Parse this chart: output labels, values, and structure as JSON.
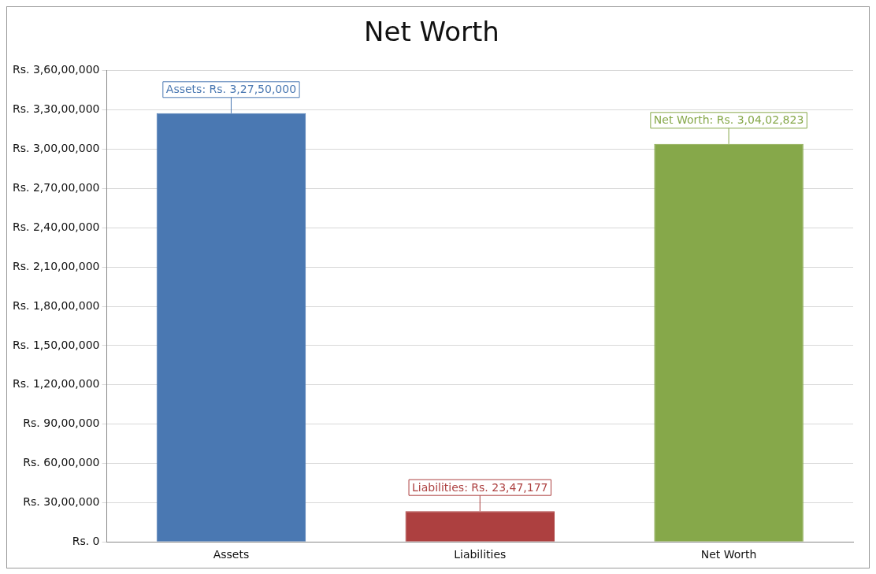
{
  "chart_data": {
    "type": "bar",
    "title": "Net Worth",
    "categories": [
      "Assets",
      "Liabilities",
      "Net Worth"
    ],
    "values": [
      32750000,
      2347177,
      30402823
    ],
    "colors": [
      "#4a78b2",
      "#ad4040",
      "#86a84a"
    ],
    "value_labels": [
      "Assets: Rs. 3,27,50,000",
      "Liabilities: Rs. 23,47,177",
      "Net Worth: Rs. 3,04,02,823"
    ],
    "ylim": [
      0,
      36000000
    ],
    "yticks": [
      {
        "value": 0,
        "label": "Rs. 0"
      },
      {
        "value": 3000000,
        "label": "Rs. 30,00,000"
      },
      {
        "value": 6000000,
        "label": "Rs. 60,00,000"
      },
      {
        "value": 9000000,
        "label": "Rs. 90,00,000"
      },
      {
        "value": 12000000,
        "label": "Rs. 1,20,00,000"
      },
      {
        "value": 15000000,
        "label": "Rs. 1,50,00,000"
      },
      {
        "value": 18000000,
        "label": "Rs. 1,80,00,000"
      },
      {
        "value": 21000000,
        "label": "Rs. 2,10,00,000"
      },
      {
        "value": 24000000,
        "label": "Rs. 2,40,00,000"
      },
      {
        "value": 27000000,
        "label": "Rs. 2,70,00,000"
      },
      {
        "value": 30000000,
        "label": "Rs. 3,00,00,000"
      },
      {
        "value": 33000000,
        "label": "Rs. 3,30,00,000"
      },
      {
        "value": 36000000,
        "label": "Rs. 3,60,00,000"
      }
    ],
    "grid": "y",
    "legend": false
  }
}
